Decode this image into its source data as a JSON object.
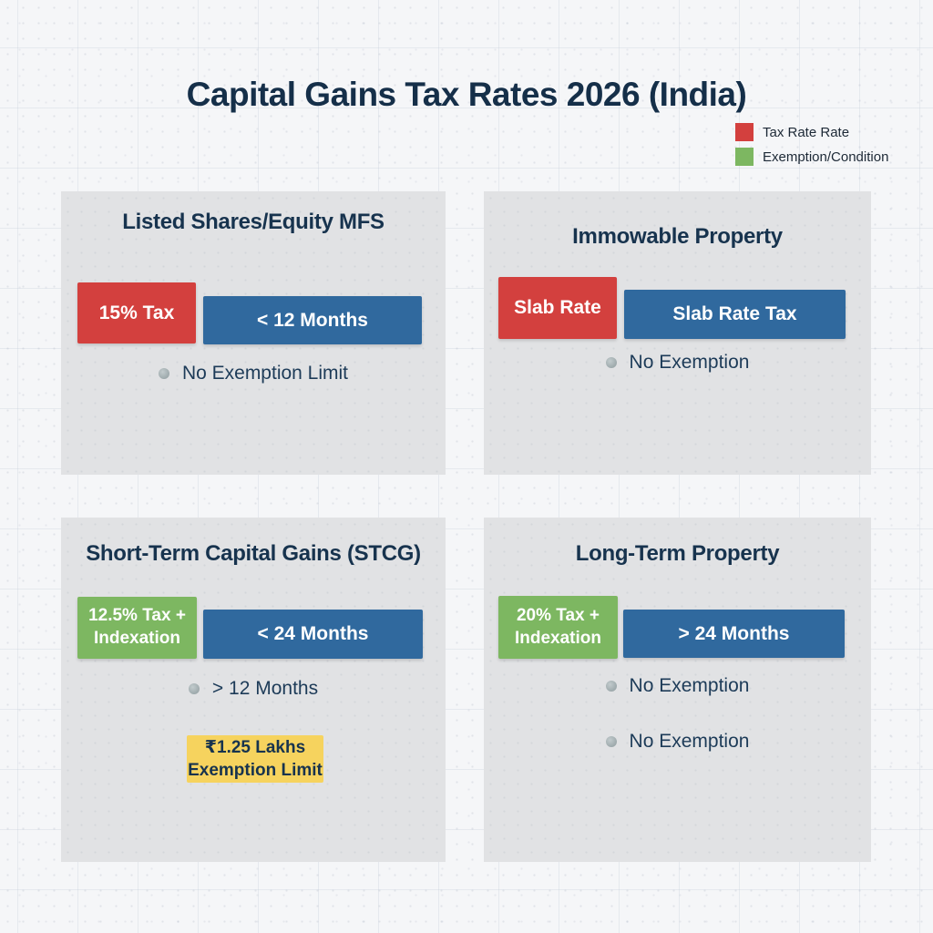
{
  "title": "Capital Gains Tax Rates 2026 (India)",
  "legend": {
    "items": [
      {
        "label": "Tax Rate Rate",
        "color": "#d3403e"
      },
      {
        "label": "Exemption/Condition",
        "color": "#7db761"
      }
    ]
  },
  "colors": {
    "red": "#d3403e",
    "blue": "#30699e",
    "green": "#7db761",
    "yellow": "#f6d35e",
    "navy": "#17334e",
    "panel_gray": "#e1e2e4",
    "page_background": "#f5f6f8"
  },
  "panels": [
    {
      "title": "Listed Shares/Equity MFS",
      "rate": {
        "text": "15% Tax"
      },
      "period": {
        "text": "< 12 Months"
      },
      "bullets": [
        "No Exemption Limit"
      ]
    },
    {
      "title": "Immowable Property",
      "rate": {
        "text": "Slab Rate"
      },
      "period": {
        "text": "Slab Rate Tax"
      },
      "bullets": [
        "No Exemption"
      ]
    },
    {
      "title": "Short-Term Capital Gains (STCG)",
      "rate": {
        "line1": "12.5% Tax +",
        "line2": "Indexation"
      },
      "period": {
        "text": "< 24 Months"
      },
      "bullets": [
        "> 12 Months"
      ],
      "highlight": {
        "line1": "₹1.25 Lakhs",
        "line2": "Exemption Limit"
      }
    },
    {
      "title": "Long-Term Property",
      "rate": {
        "line1": "20% Tax +",
        "line2": "Indexation"
      },
      "period": {
        "text": "> 24 Months"
      },
      "bullets": [
        "No Exemption",
        "No Exemption"
      ]
    }
  ]
}
